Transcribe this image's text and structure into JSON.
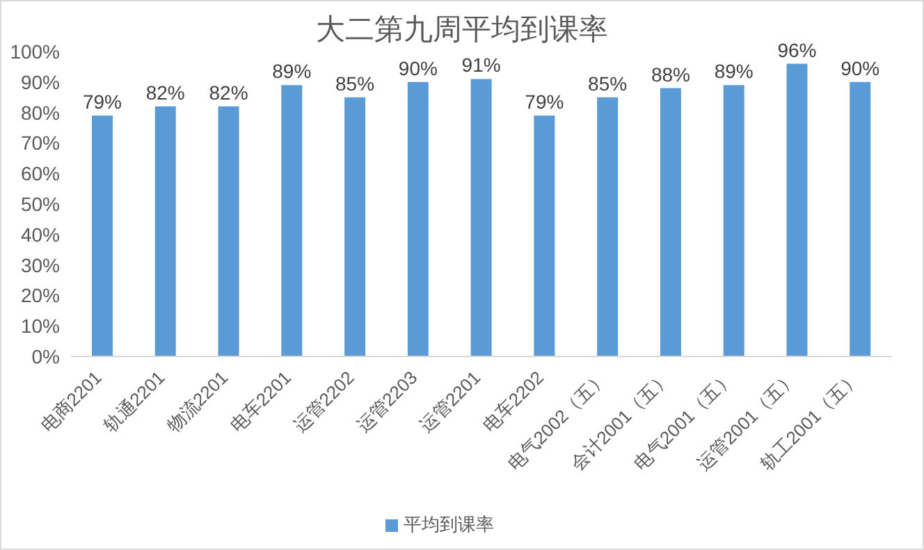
{
  "chart_data": {
    "type": "bar",
    "title": "大二第九周平均到课率",
    "categories": [
      "电商2201",
      "轨通2201",
      "物流2201",
      "电车2201",
      "运管2202",
      "运管2203",
      "运管2201",
      "电车2202",
      "电气2002（五）",
      "会计2001（五）",
      "电气2001（五）",
      "运管2001（五）",
      "轨工2001（五）"
    ],
    "series": [
      {
        "name": "平均到课率",
        "color": "#5b9bd5",
        "values": [
          79,
          82,
          82,
          89,
          85,
          90,
          91,
          79,
          85,
          88,
          89,
          96,
          90
        ],
        "value_labels": [
          "79%",
          "82%",
          "82%",
          "89%",
          "85%",
          "90%",
          "91%",
          "79%",
          "85%",
          "88%",
          "89%",
          "96%",
          "90%"
        ]
      }
    ],
    "ylim": [
      0,
      100
    ],
    "yticks": [
      {
        "value": 0,
        "label": "0%"
      },
      {
        "value": 10,
        "label": "10%"
      },
      {
        "value": 20,
        "label": "20%"
      },
      {
        "value": 30,
        "label": "30%"
      },
      {
        "value": 40,
        "label": "40%"
      },
      {
        "value": 50,
        "label": "50%"
      },
      {
        "value": 60,
        "label": "60%"
      },
      {
        "value": 70,
        "label": "70%"
      },
      {
        "value": 80,
        "label": "80%"
      },
      {
        "value": 90,
        "label": "90%"
      },
      {
        "value": 100,
        "label": "100%"
      }
    ],
    "grid": false,
    "legend": "bottom"
  }
}
